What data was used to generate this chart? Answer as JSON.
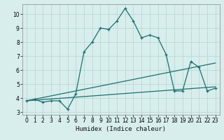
{
  "title": "",
  "xlabel": "Humidex (Indice chaleur)",
  "xlim": [
    -0.5,
    23.5
  ],
  "ylim": [
    2.8,
    10.7
  ],
  "yticks": [
    3,
    4,
    5,
    6,
    7,
    8,
    9,
    10
  ],
  "xticks": [
    0,
    1,
    2,
    3,
    4,
    5,
    6,
    7,
    8,
    9,
    10,
    11,
    12,
    13,
    14,
    15,
    16,
    17,
    18,
    19,
    20,
    21,
    22,
    23
  ],
  "bg_color": "#d7eeed",
  "line_color": "#1e6e6e",
  "grid_color": "#b8d8d5",
  "lines": [
    {
      "x": [
        0,
        1,
        2,
        3,
        4,
        5,
        6,
        7,
        8,
        9,
        10,
        11,
        12,
        13,
        14,
        15,
        16,
        17,
        18,
        19,
        20,
        21,
        22,
        23
      ],
      "y": [
        3.8,
        3.9,
        3.7,
        3.8,
        3.8,
        3.2,
        4.3,
        7.3,
        8.0,
        9.0,
        8.9,
        9.5,
        10.4,
        9.5,
        8.3,
        8.5,
        8.3,
        7.1,
        4.5,
        4.5,
        6.6,
        6.2,
        4.5,
        4.7
      ],
      "marker": true
    },
    {
      "x": [
        0,
        23
      ],
      "y": [
        3.8,
        6.5
      ],
      "marker": false
    },
    {
      "x": [
        0,
        23
      ],
      "y": [
        3.8,
        4.8
      ],
      "marker": false
    }
  ]
}
